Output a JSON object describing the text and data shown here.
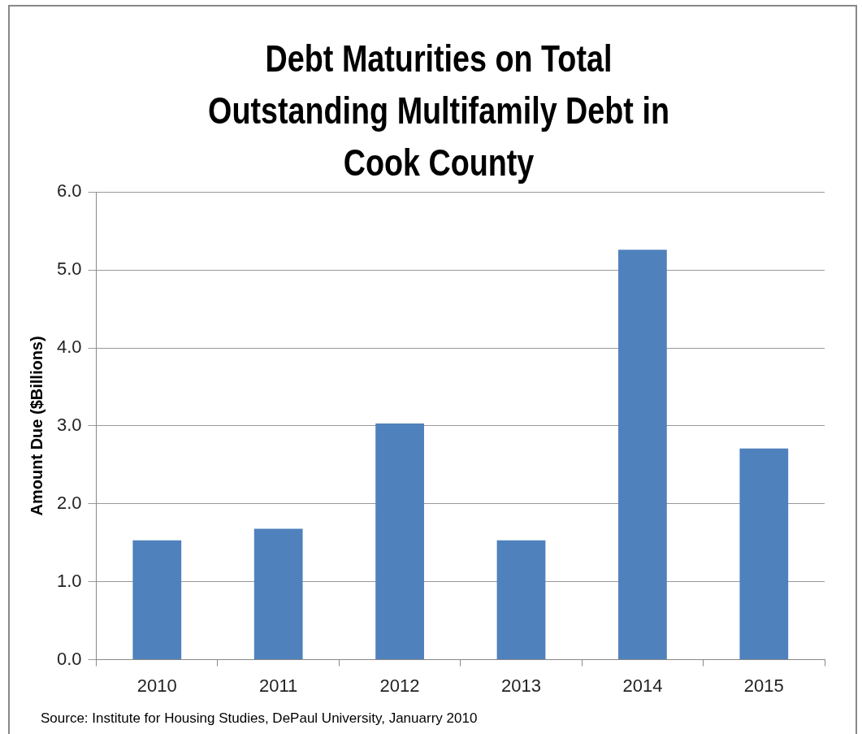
{
  "chart_data": {
    "type": "bar",
    "title": "Debt Maturities on Total Outstanding Multifamily Debt in Cook County",
    "ylabel": "Amount Due ($Billions)",
    "categories": [
      "2010",
      "2011",
      "2012",
      "2013",
      "2014",
      "2015"
    ],
    "values": [
      1.53,
      1.68,
      3.03,
      1.53,
      5.26,
      2.71
    ],
    "color": "#4f81bd",
    "ylim": [
      0,
      6
    ],
    "yticks": [
      {
        "value": 0,
        "label": "0.0"
      },
      {
        "value": 1,
        "label": "1.0"
      },
      {
        "value": 2,
        "label": "2.0"
      },
      {
        "value": 3,
        "label": "3.0"
      },
      {
        "value": 4,
        "label": "4.0"
      },
      {
        "value": 5,
        "label": "5.0"
      },
      {
        "value": 6,
        "label": "6.0"
      }
    ],
    "grid": "y",
    "annotations": [
      "Source: Institute for Housing Studies, DePaul University, Januarry 2010"
    ]
  }
}
